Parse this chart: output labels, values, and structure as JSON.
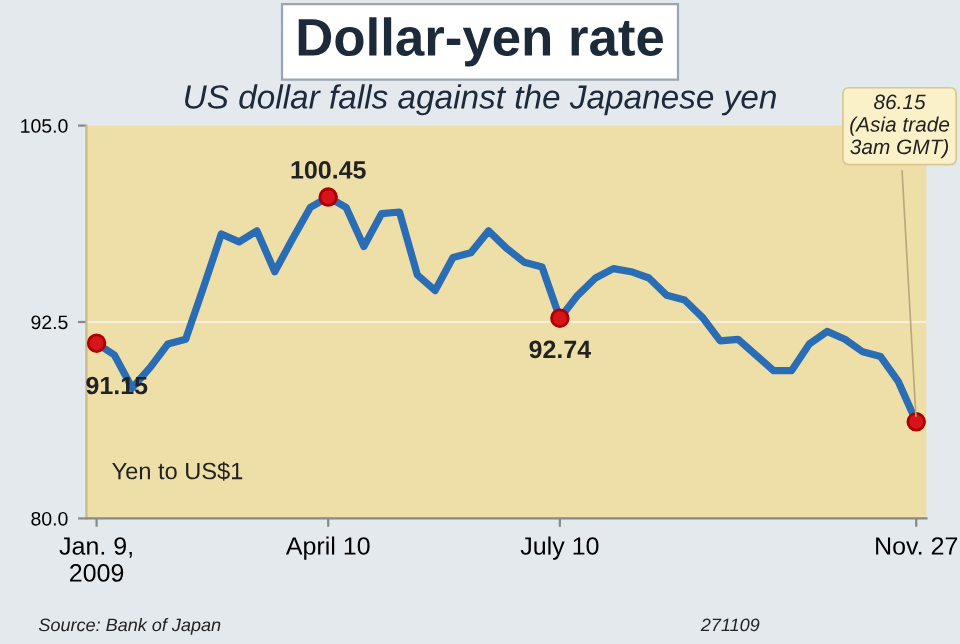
{
  "chart_data": {
    "type": "line",
    "title": "Dollar-yen rate",
    "subtitle": "US dollar falls against the Japanese yen",
    "x": [
      "2009-01-09",
      "2009-01-16",
      "2009-01-23",
      "2009-01-30",
      "2009-02-06",
      "2009-02-13",
      "2009-02-20",
      "2009-02-27",
      "2009-03-06",
      "2009-03-13",
      "2009-03-20",
      "2009-03-27",
      "2009-04-03",
      "2009-04-10",
      "2009-04-17",
      "2009-04-24",
      "2009-05-01",
      "2009-05-08",
      "2009-05-15",
      "2009-05-22",
      "2009-05-29",
      "2009-06-05",
      "2009-06-12",
      "2009-06-19",
      "2009-06-26",
      "2009-07-03",
      "2009-07-10",
      "2009-07-17",
      "2009-07-24",
      "2009-07-31",
      "2009-08-07",
      "2009-08-14",
      "2009-08-21",
      "2009-08-28",
      "2009-09-04",
      "2009-09-11",
      "2009-09-18",
      "2009-09-25",
      "2009-10-02",
      "2009-10-09",
      "2009-10-16",
      "2009-10-23",
      "2009-10-30",
      "2009-11-06",
      "2009-11-13",
      "2009-11-20",
      "2009-11-27"
    ],
    "series": [
      {
        "color": "#2a6db5",
        "values": [
          91.15,
          90.4,
          88.3,
          89.6,
          91.1,
          91.4,
          94.7,
          98.1,
          97.6,
          98.3,
          95.7,
          97.8,
          99.8,
          100.45,
          99.8,
          97.3,
          99.4,
          99.5,
          95.5,
          94.5,
          96.6,
          96.9,
          98.3,
          97.2,
          96.3,
          96.0,
          92.74,
          94.2,
          95.3,
          95.9,
          95.7,
          95.3,
          94.2,
          93.9,
          92.8,
          91.3,
          91.4,
          90.4,
          89.4,
          89.4,
          91.1,
          91.9,
          91.4,
          90.6,
          90.3,
          88.7,
          86.15
        ],
        "value_labels": [
          "91.15",
          null,
          null,
          null,
          null,
          null,
          null,
          null,
          null,
          null,
          null,
          null,
          null,
          "100.45",
          null,
          null,
          null,
          null,
          null,
          null,
          null,
          null,
          null,
          null,
          null,
          null,
          "92.74",
          null,
          null,
          null,
          null,
          null,
          null,
          null,
          null,
          null,
          null,
          null,
          null,
          null,
          null,
          null,
          null,
          null,
          null,
          null,
          null
        ]
      }
    ],
    "xlim": [
      "2009-01-05",
      "2009-12-01"
    ],
    "xticks": [
      {
        "value": "2009-01-09",
        "label": "Jan. 9,\n2009"
      },
      {
        "value": "2009-04-10",
        "label": "April 10"
      },
      {
        "value": "2009-07-10",
        "label": "July 10"
      },
      {
        "value": "2009-11-27",
        "label": "Nov. 27"
      }
    ],
    "ylim": [
      80,
      105
    ],
    "yticks": [
      {
        "value": 80,
        "label": "80.0"
      },
      {
        "value": 92.5,
        "label": "92.5"
      },
      {
        "value": 105,
        "label": "105.0"
      }
    ],
    "ref_lines": [
      {
        "axis": "y",
        "value": 92.5,
        "color": "#f6f0dc"
      }
    ],
    "legend": false,
    "marker": "none",
    "line_style": "solid",
    "annotations": [
      {
        "text": "86.15\n(Asia trade\n3am GMT)",
        "x": "2009-11-27",
        "y": 86.15
      },
      "Yen to US$1",
      "Source: Bank of Japan",
      "271109"
    ]
  }
}
